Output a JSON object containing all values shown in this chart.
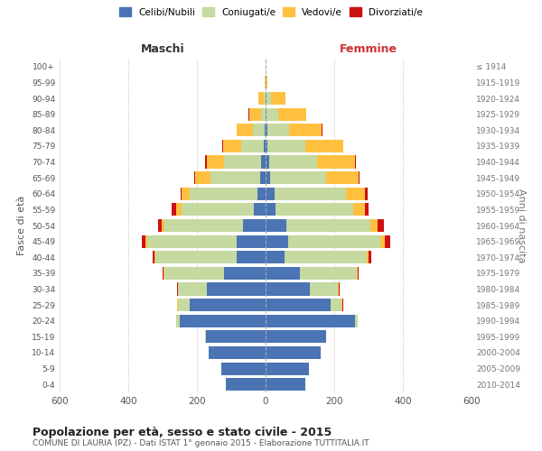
{
  "age_groups": [
    "0-4",
    "5-9",
    "10-14",
    "15-19",
    "20-24",
    "25-29",
    "30-34",
    "35-39",
    "40-44",
    "45-49",
    "50-54",
    "55-59",
    "60-64",
    "65-69",
    "70-74",
    "75-79",
    "80-84",
    "85-89",
    "90-94",
    "95-99",
    "100+"
  ],
  "birth_years": [
    "2010-2014",
    "2005-2009",
    "2000-2004",
    "1995-1999",
    "1990-1994",
    "1985-1989",
    "1980-1984",
    "1975-1979",
    "1970-1974",
    "1965-1969",
    "1960-1964",
    "1955-1959",
    "1950-1954",
    "1945-1949",
    "1940-1944",
    "1935-1939",
    "1930-1934",
    "1925-1929",
    "1920-1924",
    "1915-1919",
    "≤ 1914"
  ],
  "colors": {
    "celibi": "#4a74b4",
    "coniugati": "#c5d9a0",
    "vedovi": "#ffc040",
    "divorziati": "#cc1111"
  },
  "maschi": {
    "celibi": [
      115,
      130,
      165,
      175,
      250,
      220,
      170,
      120,
      85,
      85,
      65,
      35,
      25,
      15,
      12,
      5,
      3,
      1,
      1,
      0,
      0
    ],
    "coniugati": [
      0,
      0,
      0,
      2,
      10,
      35,
      85,
      175,
      235,
      260,
      230,
      210,
      195,
      145,
      110,
      65,
      35,
      12,
      5,
      0,
      0
    ],
    "vedovi": [
      0,
      0,
      0,
      0,
      0,
      2,
      1,
      2,
      3,
      5,
      8,
      15,
      25,
      45,
      50,
      55,
      45,
      35,
      15,
      2,
      0
    ],
    "divorziati": [
      0,
      0,
      0,
      0,
      0,
      1,
      2,
      2,
      5,
      10,
      10,
      15,
      3,
      2,
      5,
      2,
      1,
      1,
      0,
      0,
      0
    ]
  },
  "femmine": {
    "celibi": [
      115,
      125,
      160,
      175,
      260,
      190,
      130,
      100,
      55,
      65,
      60,
      30,
      25,
      12,
      10,
      5,
      4,
      3,
      2,
      0,
      0
    ],
    "coniugati": [
      0,
      0,
      0,
      2,
      8,
      30,
      80,
      165,
      240,
      270,
      245,
      225,
      210,
      165,
      140,
      110,
      65,
      35,
      15,
      2,
      0
    ],
    "vedovi": [
      0,
      0,
      0,
      0,
      0,
      3,
      2,
      3,
      5,
      12,
      20,
      35,
      55,
      95,
      110,
      110,
      95,
      80,
      40,
      4,
      1
    ],
    "divorziati": [
      0,
      0,
      0,
      0,
      0,
      2,
      3,
      4,
      8,
      15,
      20,
      10,
      8,
      2,
      2,
      2,
      1,
      1,
      0,
      0,
      0
    ]
  },
  "title": "Popolazione per età, sesso e stato civile - 2015",
  "subtitle": "COMUNE DI LAURIA (PZ) - Dati ISTAT 1° gennaio 2015 - Elaborazione TUTTITALIA.IT",
  "xlabel_left": "Maschi",
  "xlabel_right": "Femmine",
  "ylabel_left": "Fasce di età",
  "ylabel_right": "Anni di nascita",
  "xlim": 600,
  "bg_color": "#ffffff",
  "grid_color": "#cccccc",
  "legend_labels": [
    "Celibi/Nubili",
    "Coniugati/e",
    "Vedovi/e",
    "Divorziati/e"
  ]
}
